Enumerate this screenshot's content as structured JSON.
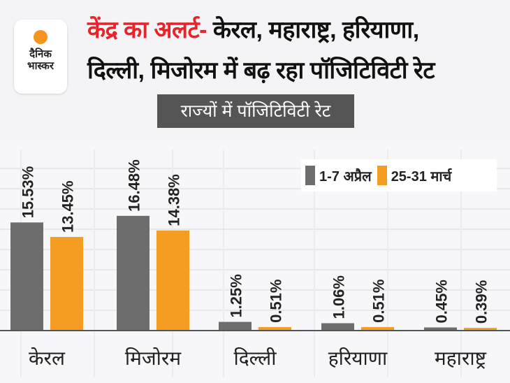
{
  "logo": {
    "line1": "दैनिक",
    "line2": "भास्कर"
  },
  "header": {
    "title_red": "केंद्र का अलर्ट-",
    "title_rest_1": " केरल, महाराष्ट्र, हरियाणा,",
    "title_rest_2": "दिल्ली, मिजोरम में बढ़ रहा पॉजिटिविटी रेट"
  },
  "chart_data": {
    "type": "bar",
    "title": "राज्यों में पॉजिटिविटी रेट",
    "categories": [
      "केरल",
      "मिजोरम",
      "दिल्ली",
      "हरियाणा",
      "महाराष्ट्र"
    ],
    "series": [
      {
        "name": "1-7 अप्रैल",
        "color": "#6d6d6d",
        "values": [
          15.53,
          16.48,
          1.25,
          1.06,
          0.45
        ],
        "labels": [
          "15.53%",
          "16.48%",
          "1.25%",
          "1.06%",
          "0.45%"
        ]
      },
      {
        "name": "25-31 मार्च",
        "color": "#f59d22",
        "values": [
          13.45,
          14.38,
          0.51,
          0.51,
          0.39
        ],
        "labels": [
          "13.45%",
          "14.38%",
          "0.51%",
          "0.51%",
          "0.39%"
        ]
      }
    ],
    "ylim": [
      0,
      26
    ],
    "grid": true,
    "legend": "top-right",
    "xlabel": "",
    "ylabel": ""
  }
}
